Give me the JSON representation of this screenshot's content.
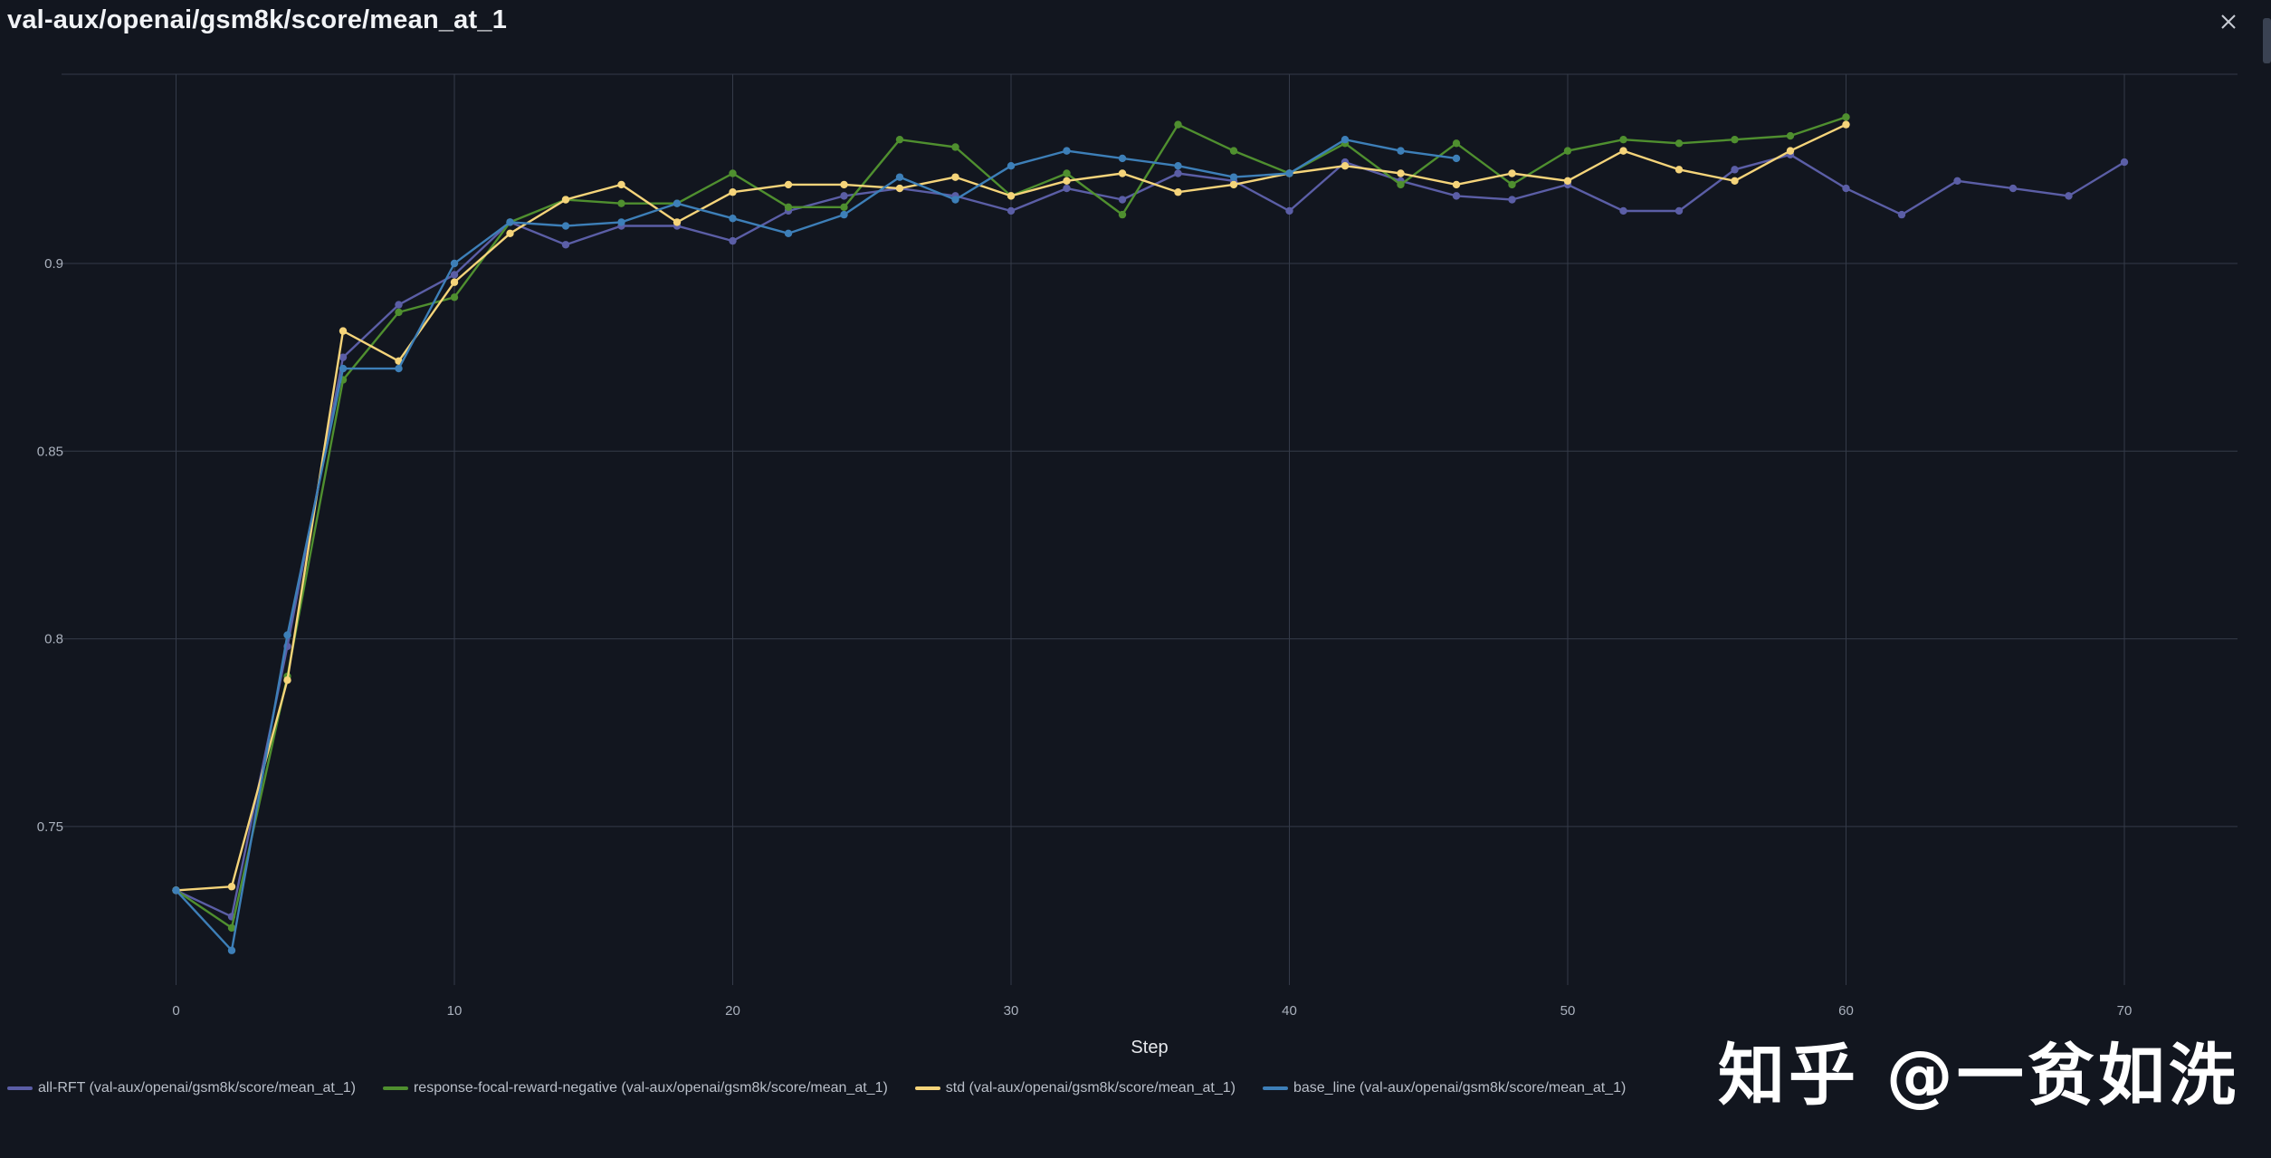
{
  "panel": {
    "title": "val-aux/openai/gsm8k/score/mean_at_1",
    "close_icon": "close-icon"
  },
  "watermark": "知乎 @一贫如洗",
  "chart_data": {
    "type": "line",
    "title": "val-aux/openai/gsm8k/score/mean_at_1",
    "xlabel": "Step",
    "ylabel": "",
    "xlim": [
      -4,
      74
    ],
    "ylim": [
      0.7,
      0.95
    ],
    "xticks": [
      0,
      10,
      20,
      30,
      40,
      50,
      60,
      70
    ],
    "yticks": [
      0.75,
      0.8,
      0.85,
      0.9
    ],
    "ytick_labels": [
      "0.75",
      "0.8",
      "0.85",
      "0.9"
    ],
    "grid": true,
    "legend_position": "bottom-left",
    "series": [
      {
        "name": "all-RFT (val-aux/openai/gsm8k/score/mean_at_1)",
        "color": "#5b5ea6",
        "x": [
          0,
          2,
          4,
          6,
          8,
          10,
          12,
          14,
          16,
          18,
          20,
          22,
          24,
          26,
          28,
          30,
          32,
          34,
          36,
          38,
          40,
          42,
          44,
          46,
          48,
          50,
          52,
          54,
          56,
          58,
          60,
          62,
          64,
          66,
          68,
          70
        ],
        "y": [
          0.733,
          0.726,
          0.798,
          0.875,
          0.889,
          0.897,
          0.911,
          0.905,
          0.91,
          0.91,
          0.906,
          0.914,
          0.918,
          0.92,
          0.918,
          0.914,
          0.92,
          0.917,
          0.924,
          0.922,
          0.914,
          0.927,
          0.922,
          0.918,
          0.917,
          0.921,
          0.914,
          0.914,
          0.925,
          0.929,
          0.92,
          0.913,
          0.922,
          0.92,
          0.918,
          0.927
        ]
      },
      {
        "name": "response-focal-reward-negative (val-aux/openai/gsm8k/score/mean_at_1)",
        "color": "#4f8f2f",
        "x": [
          0,
          2,
          4,
          6,
          8,
          10,
          12,
          14,
          16,
          18,
          20,
          22,
          24,
          26,
          28,
          30,
          32,
          34,
          36,
          38,
          40,
          42,
          44,
          46,
          48,
          50,
          52,
          54,
          56,
          58,
          60
        ],
        "y": [
          0.733,
          0.723,
          0.79,
          0.869,
          0.887,
          0.891,
          0.911,
          0.917,
          0.916,
          0.916,
          0.924,
          0.915,
          0.915,
          0.933,
          0.931,
          0.918,
          0.924,
          0.913,
          0.937,
          0.93,
          0.924,
          0.932,
          0.921,
          0.932,
          0.921,
          0.93,
          0.933,
          0.932,
          0.933,
          0.934,
          0.939
        ]
      },
      {
        "name": "std (val-aux/openai/gsm8k/score/mean_at_1)",
        "color": "#f5d47a",
        "x": [
          0,
          2,
          4,
          6,
          8,
          10,
          12,
          14,
          16,
          18,
          20,
          22,
          24,
          26,
          28,
          30,
          32,
          34,
          36,
          38,
          40,
          42,
          44,
          46,
          48,
          50,
          52,
          54,
          56,
          58,
          60
        ],
        "y": [
          0.733,
          0.734,
          0.789,
          0.882,
          0.874,
          0.895,
          0.908,
          0.917,
          0.921,
          0.911,
          0.919,
          0.921,
          0.921,
          0.92,
          0.923,
          0.918,
          0.922,
          0.924,
          0.919,
          0.921,
          0.924,
          0.926,
          0.924,
          0.921,
          0.924,
          0.922,
          0.93,
          0.925,
          0.922,
          0.93,
          0.937
        ]
      },
      {
        "name": "base_line (val-aux/openai/gsm8k/score/mean_at_1)",
        "color": "#3d7fb8",
        "x": [
          0,
          2,
          4,
          6,
          8,
          10,
          12,
          14,
          16,
          18,
          20,
          22,
          24,
          26,
          28,
          30,
          32,
          34,
          36,
          38,
          40,
          42,
          44,
          46
        ],
        "y": [
          0.733,
          0.717,
          0.801,
          0.872,
          0.872,
          0.9,
          0.911,
          0.91,
          0.911,
          0.916,
          0.912,
          0.908,
          0.913,
          0.923,
          0.917,
          0.926,
          0.93,
          0.928,
          0.926,
          0.923,
          0.924,
          0.933,
          0.93,
          0.928
        ]
      }
    ]
  }
}
